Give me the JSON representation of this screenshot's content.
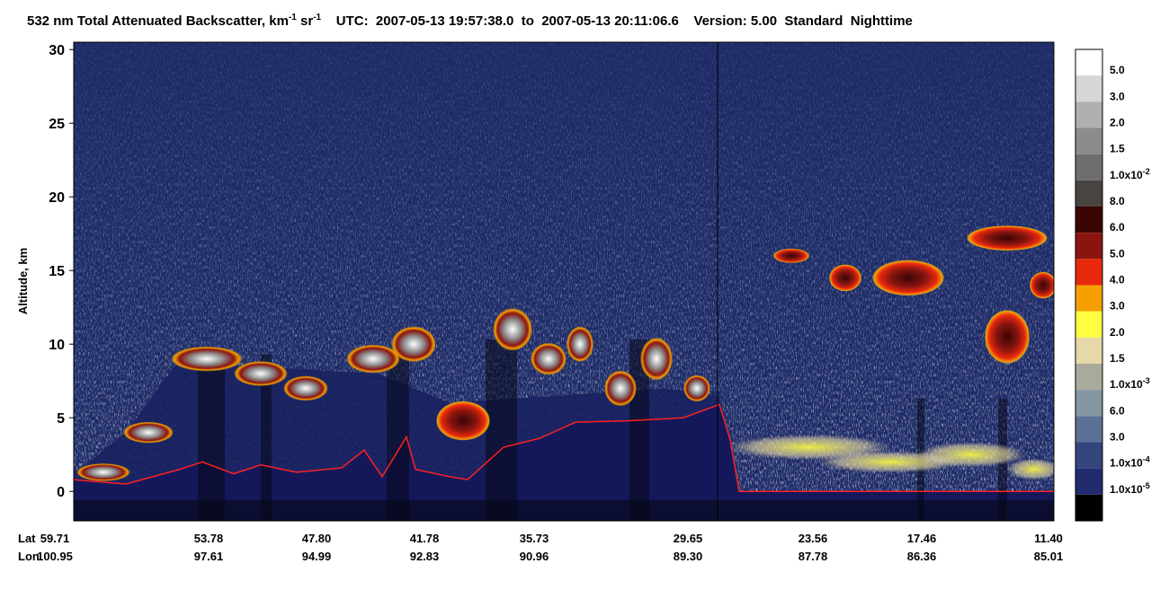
{
  "chart_data": {
    "type": "curtain",
    "title": [
      {
        "text": "532 nm Total Attenuated Backscatter, km"
      },
      {
        "text": "-1",
        "sup": true
      },
      {
        "text": " sr"
      },
      {
        "text": "-1",
        "sup": true
      },
      {
        "text": "    UTC:  2007-05-13 19:57:38.0  to  2007-05-13 20:11:06.6    Version: 5.00  Standard  Nighttime"
      }
    ],
    "ylabel": "Altitude, km",
    "ylim": [
      -2,
      30.5
    ],
    "yticks": [
      0,
      5,
      10,
      15,
      20,
      25,
      30
    ],
    "x_rows": [
      {
        "name": "Lat",
        "labels": [
          "59.71",
          "53.78",
          "47.80",
          "41.78",
          "35.73",
          "29.65",
          "23.56",
          "17.46",
          "11.40"
        ]
      },
      {
        "name": "Lon",
        "labels": [
          "100.95",
          "97.61",
          "94.99",
          "92.83",
          "90.96",
          "89.30",
          "87.78",
          "86.36",
          "85.01"
        ]
      }
    ],
    "colorbar": {
      "colors": [
        "#ffffff",
        "#d6d6d6",
        "#b0b0b0",
        "#8c8c8c",
        "#6e6e6e",
        "#4a4441",
        "#3a0503",
        "#8a1510",
        "#e8280c",
        "#f5a000",
        "#ffff40",
        "#e6d8a8",
        "#a9aa9c",
        "#8597a2",
        "#5d7196",
        "#34457e",
        "#222a70",
        "#000000"
      ],
      "labels": [
        {
          "text": "5.0"
        },
        {
          "text": "3.0"
        },
        {
          "text": "2.0"
        },
        {
          "text": "1.5"
        },
        {
          "text": "1.0x10",
          "sup": "-2"
        },
        {
          "text": "8.0"
        },
        {
          "text": "6.0"
        },
        {
          "text": "5.0"
        },
        {
          "text": "4.0"
        },
        {
          "text": "3.0"
        },
        {
          "text": "2.0"
        },
        {
          "text": "1.5"
        },
        {
          "text": "1.0x10",
          "sup": "-3"
        },
        {
          "text": "6.0"
        },
        {
          "text": "3.0"
        },
        {
          "text": "1.0x10",
          "sup": "-4"
        },
        {
          "text": "1.0x10",
          "sup": "-5"
        }
      ]
    }
  }
}
